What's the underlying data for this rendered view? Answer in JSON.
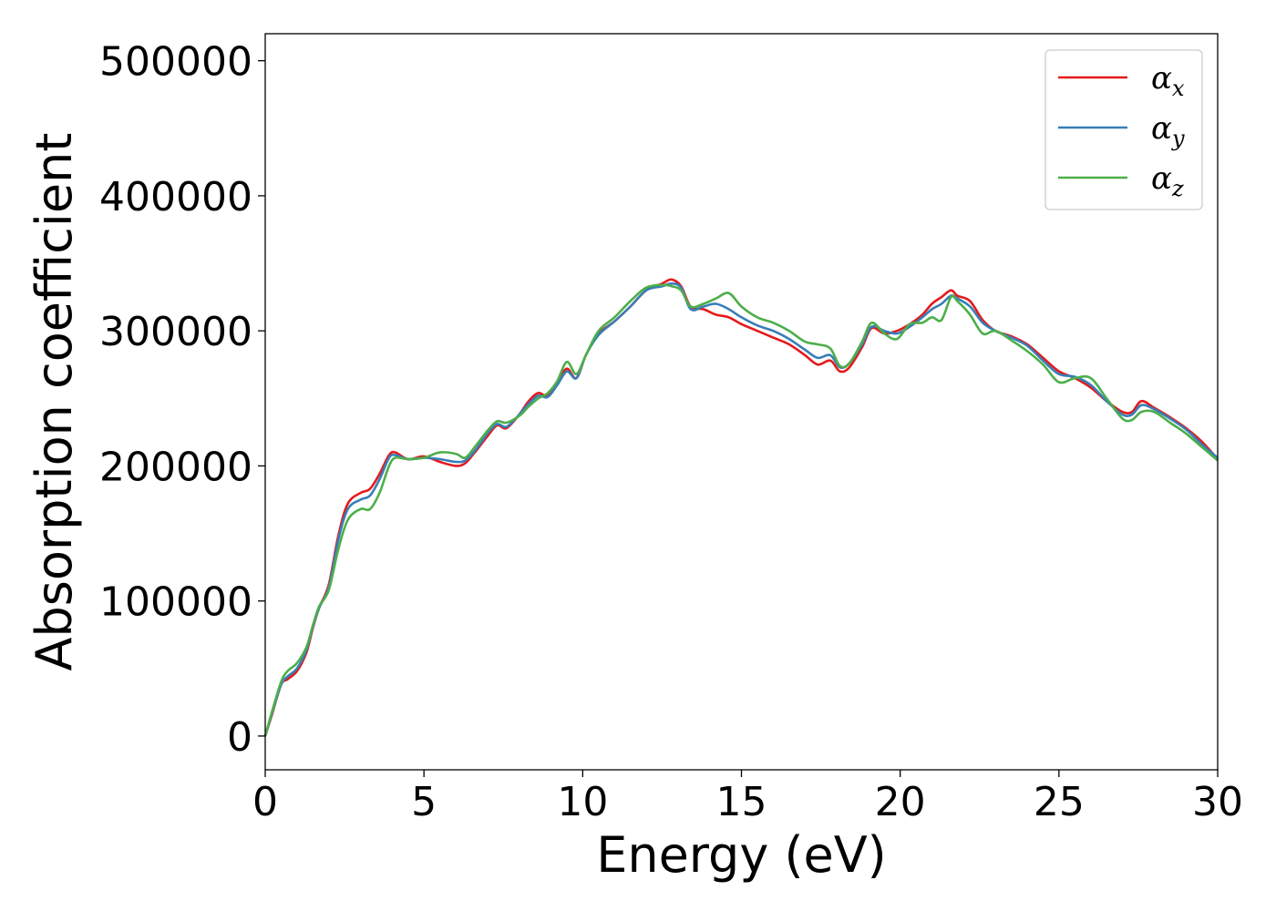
{
  "chart_data": {
    "type": "line",
    "title": "",
    "xlabel": "Energy (eV)",
    "ylabel": "Absorption coefficient",
    "xlim": [
      0,
      30
    ],
    "ylim": [
      -25000,
      520000
    ],
    "xticks": [
      0,
      5,
      10,
      15,
      20,
      25,
      30
    ],
    "xtick_labels": [
      "0",
      "5",
      "10",
      "15",
      "20",
      "25",
      "30"
    ],
    "yticks": [
      0,
      100000,
      200000,
      300000,
      400000,
      500000
    ],
    "ytick_labels": [
      "0",
      "100000",
      "200000",
      "300000",
      "400000",
      "500000"
    ],
    "grid": false,
    "legend_position": "top-right",
    "series": [
      {
        "name": "α_x",
        "legend_symbol": "α",
        "legend_sub": "x",
        "color": "#e41a1c",
        "x": [
          0,
          0.2,
          0.5,
          0.7,
          1.0,
          1.3,
          1.5,
          1.7,
          2.0,
          2.3,
          2.6,
          3.0,
          3.3,
          3.6,
          3.9,
          4.1,
          4.5,
          5.0,
          5.5,
          6.0,
          6.3,
          6.6,
          7.0,
          7.3,
          7.6,
          8.0,
          8.3,
          8.6,
          8.9,
          9.2,
          9.5,
          9.8,
          10.1,
          10.5,
          11.0,
          11.5,
          12.0,
          12.5,
          12.8,
          13.1,
          13.4,
          13.8,
          14.2,
          14.6,
          15.0,
          15.5,
          16.0,
          16.5,
          17.0,
          17.4,
          17.8,
          18.1,
          18.4,
          18.8,
          19.1,
          19.5,
          19.9,
          20.3,
          20.7,
          21.0,
          21.3,
          21.6,
          21.8,
          22.2,
          22.6,
          23.0,
          23.5,
          24.0,
          24.5,
          25.0,
          25.5,
          26.0,
          26.5,
          27.0,
          27.3,
          27.6,
          28.0,
          28.5,
          29.0,
          29.5,
          30.0
        ],
        "values": [
          0,
          15000,
          38000,
          42000,
          48000,
          62000,
          80000,
          95000,
          112000,
          148000,
          172000,
          180000,
          183000,
          194000,
          208000,
          210000,
          205000,
          207000,
          203000,
          200000,
          202000,
          210000,
          222000,
          230000,
          228000,
          238000,
          248000,
          254000,
          252000,
          262000,
          272000,
          265000,
          282000,
          298000,
          307000,
          318000,
          330000,
          335000,
          338000,
          333000,
          318000,
          316000,
          312000,
          310000,
          305000,
          300000,
          295000,
          290000,
          282000,
          275000,
          278000,
          270000,
          273000,
          288000,
          302000,
          298000,
          300000,
          305000,
          312000,
          320000,
          325000,
          330000,
          326000,
          322000,
          308000,
          300000,
          296000,
          290000,
          280000,
          270000,
          265000,
          258000,
          248000,
          240000,
          240000,
          248000,
          243000,
          236000,
          228000,
          218000,
          205000
        ]
      },
      {
        "name": "α_y",
        "legend_symbol": "α",
        "legend_sub": "y",
        "color": "#377eb8",
        "x": [
          0,
          0.2,
          0.5,
          0.7,
          1.0,
          1.3,
          1.5,
          1.7,
          2.0,
          2.3,
          2.6,
          3.0,
          3.3,
          3.6,
          3.9,
          4.1,
          4.5,
          5.0,
          5.5,
          6.0,
          6.3,
          6.6,
          7.0,
          7.3,
          7.6,
          8.0,
          8.3,
          8.6,
          8.9,
          9.2,
          9.5,
          9.8,
          10.1,
          10.5,
          11.0,
          11.5,
          12.0,
          12.5,
          12.8,
          13.1,
          13.4,
          13.8,
          14.2,
          14.6,
          15.0,
          15.5,
          16.0,
          16.5,
          17.0,
          17.4,
          17.8,
          18.1,
          18.4,
          18.8,
          19.1,
          19.5,
          19.9,
          20.3,
          20.7,
          21.0,
          21.3,
          21.6,
          21.8,
          22.2,
          22.6,
          23.0,
          23.5,
          24.0,
          24.5,
          25.0,
          25.5,
          26.0,
          26.5,
          27.0,
          27.3,
          27.6,
          28.0,
          28.5,
          29.0,
          29.5,
          30.0
        ],
        "values": [
          0,
          16000,
          38000,
          44000,
          50000,
          64000,
          81000,
          95000,
          110000,
          145000,
          168000,
          175000,
          178000,
          190000,
          206000,
          208000,
          205000,
          206000,
          205000,
          203000,
          204000,
          211000,
          224000,
          231000,
          229000,
          238000,
          246000,
          252000,
          251000,
          260000,
          270000,
          265000,
          282000,
          297000,
          307000,
          318000,
          330000,
          333000,
          335000,
          332000,
          316000,
          318000,
          320000,
          316000,
          310000,
          304000,
          300000,
          294000,
          286000,
          280000,
          282000,
          273000,
          276000,
          290000,
          303000,
          300000,
          298000,
          303000,
          310000,
          316000,
          320000,
          326000,
          324000,
          318000,
          306000,
          300000,
          295000,
          289000,
          278000,
          268000,
          266000,
          260000,
          248000,
          238000,
          238000,
          245000,
          242000,
          235000,
          227000,
          216000,
          206000
        ]
      },
      {
        "name": "α_z",
        "legend_symbol": "α",
        "legend_sub": "z",
        "color": "#4daf4a",
        "x": [
          0,
          0.2,
          0.5,
          0.7,
          1.0,
          1.3,
          1.5,
          1.7,
          2.0,
          2.3,
          2.6,
          3.0,
          3.3,
          3.6,
          3.9,
          4.1,
          4.5,
          5.0,
          5.5,
          6.0,
          6.3,
          6.6,
          7.0,
          7.3,
          7.6,
          8.0,
          8.3,
          8.6,
          8.9,
          9.2,
          9.5,
          9.8,
          10.1,
          10.5,
          11.0,
          11.5,
          12.0,
          12.5,
          12.8,
          13.1,
          13.4,
          13.8,
          14.2,
          14.6,
          15.0,
          15.5,
          16.0,
          16.5,
          17.0,
          17.4,
          17.8,
          18.1,
          18.4,
          18.8,
          19.1,
          19.5,
          19.9,
          20.3,
          20.7,
          21.0,
          21.3,
          21.6,
          21.8,
          22.2,
          22.6,
          23.0,
          23.5,
          24.0,
          24.5,
          25.0,
          25.5,
          26.0,
          26.5,
          27.0,
          27.3,
          27.6,
          28.0,
          28.5,
          29.0,
          29.5,
          30.0
        ],
        "values": [
          0,
          17000,
          40000,
          48000,
          54000,
          66000,
          82000,
          96000,
          108000,
          138000,
          160000,
          168000,
          168000,
          180000,
          200000,
          206000,
          205000,
          206000,
          210000,
          209000,
          206000,
          214000,
          226000,
          233000,
          232000,
          237000,
          244000,
          250000,
          254000,
          263000,
          277000,
          268000,
          282000,
          300000,
          310000,
          322000,
          332000,
          334000,
          333000,
          330000,
          318000,
          320000,
          324000,
          328000,
          318000,
          310000,
          306000,
          300000,
          292000,
          290000,
          287000,
          274000,
          276000,
          292000,
          306000,
          298000,
          294000,
          305000,
          306000,
          310000,
          308000,
          325000,
          322000,
          312000,
          298000,
          300000,
          293000,
          285000,
          275000,
          262000,
          265000,
          265000,
          250000,
          235000,
          234000,
          240000,
          240000,
          232000,
          224000,
          214000,
          204000
        ]
      }
    ]
  }
}
